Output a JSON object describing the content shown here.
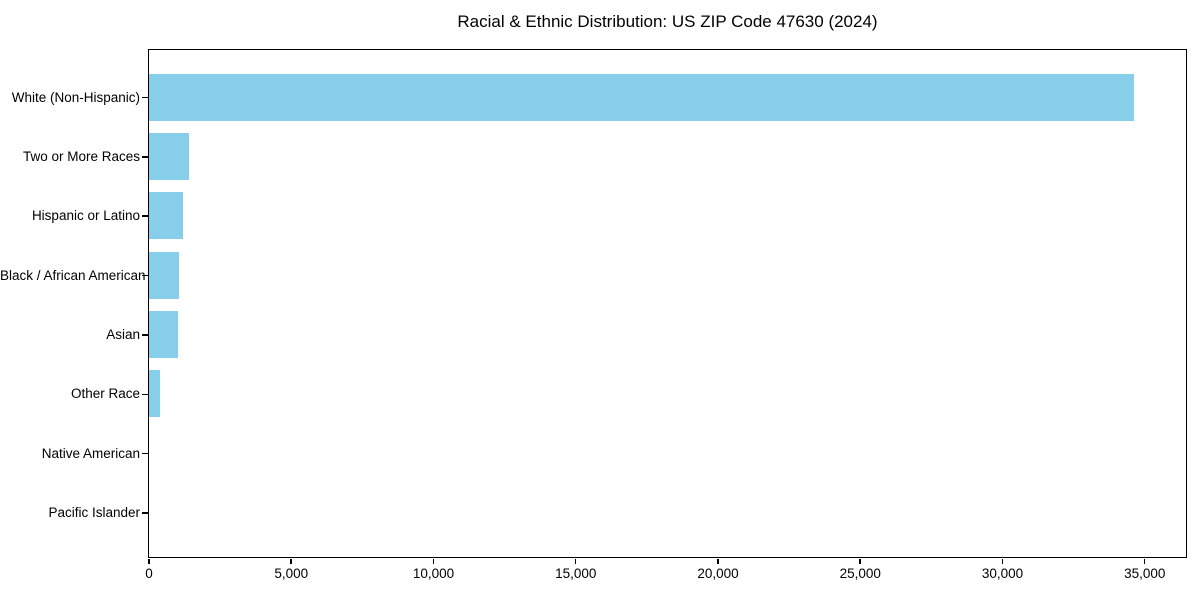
{
  "chart_data": {
    "type": "bar",
    "orientation": "horizontal",
    "title": "Racial & Ethnic Distribution: US ZIP Code 47630 (2024)",
    "categories": [
      "White (Non-Hispanic)",
      "Two or More Races",
      "Hispanic or Latino",
      "Black / African American",
      "Asian",
      "Other Race",
      "Native American",
      "Pacific Islander"
    ],
    "values": [
      34650,
      1430,
      1230,
      1060,
      1045,
      390,
      0,
      0
    ],
    "xlabel": "",
    "ylabel": "",
    "xlim": [
      0,
      36450
    ],
    "xticks": [
      0,
      5000,
      10000,
      15000,
      20000,
      25000,
      30000,
      35000
    ],
    "xtick_labels": [
      "0",
      "5,000",
      "10,000",
      "15,000",
      "20,000",
      "25,000",
      "30,000",
      "35,000"
    ],
    "bar_color": "#87CEEB",
    "axis_color": "#000000",
    "text_color": "#000000",
    "background_color": "#ffffff",
    "grid": false,
    "legend": "none",
    "category_order": "top-to-bottom descending"
  }
}
